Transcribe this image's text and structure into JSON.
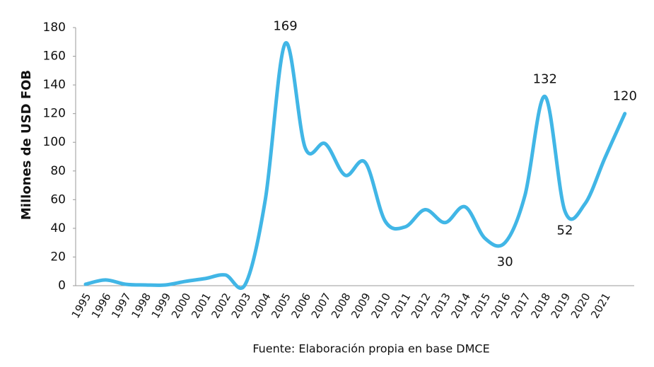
{
  "chart_data": {
    "type": "line",
    "y_label": "Millones de USD FOB",
    "source": "Fuente: Elaboración propia en base DMCE",
    "categories": [
      "1995",
      "1996",
      "1997",
      "1998",
      "1999",
      "2000",
      "2001",
      "2002",
      "2003",
      "2004",
      "2005",
      "2006",
      "2007",
      "2008",
      "2009",
      "2010",
      "2011",
      "2012",
      "2013",
      "2014",
      "2015",
      "2016",
      "2017",
      "2018",
      "2019",
      "2020",
      "2021",
      null
    ],
    "values": [
      1,
      4,
      1,
      0.5,
      0.5,
      3,
      5,
      7.5,
      1,
      60,
      169,
      96,
      99,
      77,
      86,
      45,
      41,
      53,
      44,
      55,
      33,
      30,
      63,
      132,
      52,
      57,
      89,
      120
    ],
    "value_labels": [
      null,
      null,
      null,
      null,
      null,
      null,
      null,
      null,
      null,
      null,
      "169",
      null,
      null,
      null,
      null,
      null,
      null,
      null,
      null,
      null,
      null,
      "30",
      null,
      "132",
      "52",
      null,
      null,
      "120"
    ],
    "color": "#41b6e6",
    "ylim": [
      0,
      180
    ],
    "yticks": [
      0,
      20,
      40,
      60,
      80,
      100,
      120,
      140,
      160,
      180
    ]
  }
}
